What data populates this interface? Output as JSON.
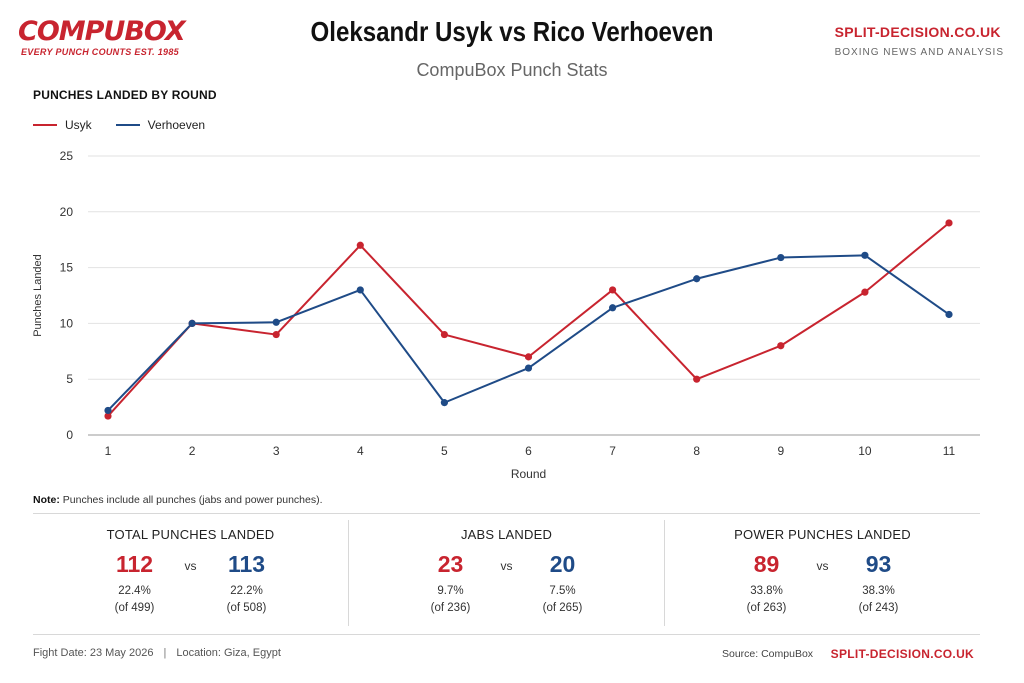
{
  "brand": {
    "logo_text": "COMPUBOX",
    "logo_tagline": "EVERY PUNCH COUNTS  EST. 1985",
    "site_name": "SPLIT-DECISION.CO.UK",
    "site_sub": "BOXING NEWS AND ANALYSIS",
    "accent_red": "#c8242f",
    "accent_blue": "#1f4b87"
  },
  "header": {
    "title": "Oleksandr Usyk vs Rico Verhoeven",
    "subtitle": "CompuBox Punch Stats"
  },
  "chart_heading": "PUNCHES LANDED BY ROUND",
  "chart_data": {
    "type": "line",
    "title": "PUNCHES LANDED BY ROUND",
    "xlabel": "Round",
    "ylabel": "Punches Landed",
    "x": [
      1,
      2,
      3,
      4,
      5,
      6,
      7,
      8,
      9,
      10,
      11
    ],
    "ylim": [
      0,
      25
    ],
    "yticks": [
      0,
      5,
      10,
      15,
      20,
      25
    ],
    "grid": true,
    "legend_position": "top-left",
    "series": [
      {
        "name": "Usyk",
        "color": "#c8242f",
        "values": [
          1.7,
          10,
          9,
          17,
          9,
          7,
          13,
          5,
          8,
          12.8,
          19
        ]
      },
      {
        "name": "Verhoeven",
        "color": "#1f4b87",
        "values": [
          2.2,
          10,
          10.1,
          13,
          2.9,
          6,
          11.4,
          14,
          15.9,
          16.1,
          10.8
        ]
      }
    ]
  },
  "note": {
    "label": "Note:",
    "text": " Punches include all punches (jabs and power punches)."
  },
  "stats": [
    {
      "title": "TOTAL PUNCHES LANDED",
      "usyk": {
        "value": "112",
        "pct": "22.4%",
        "of": "(of 499)"
      },
      "verhoeven": {
        "value": "113",
        "pct": "22.2%",
        "of": "(of 508)"
      },
      "vs": "vs"
    },
    {
      "title": "JABS LANDED",
      "usyk": {
        "value": "23",
        "pct": "9.7%",
        "of": "(of 236)"
      },
      "verhoeven": {
        "value": "20",
        "pct": "7.5%",
        "of": "(of 265)"
      },
      "vs": "vs"
    },
    {
      "title": "POWER PUNCHES LANDED",
      "usyk": {
        "value": "89",
        "pct": "33.8%",
        "of": "(of 263)"
      },
      "verhoeven": {
        "value": "93",
        "pct": "38.3%",
        "of": "(of 243)"
      },
      "vs": "vs"
    }
  ],
  "footer": {
    "fight_date": "Fight Date: 23 May 2026",
    "separator": "|",
    "location": "Location: Giza, Egypt",
    "source": "Source: CompuBox",
    "site": "SPLIT-DECISION.CO.UK"
  }
}
